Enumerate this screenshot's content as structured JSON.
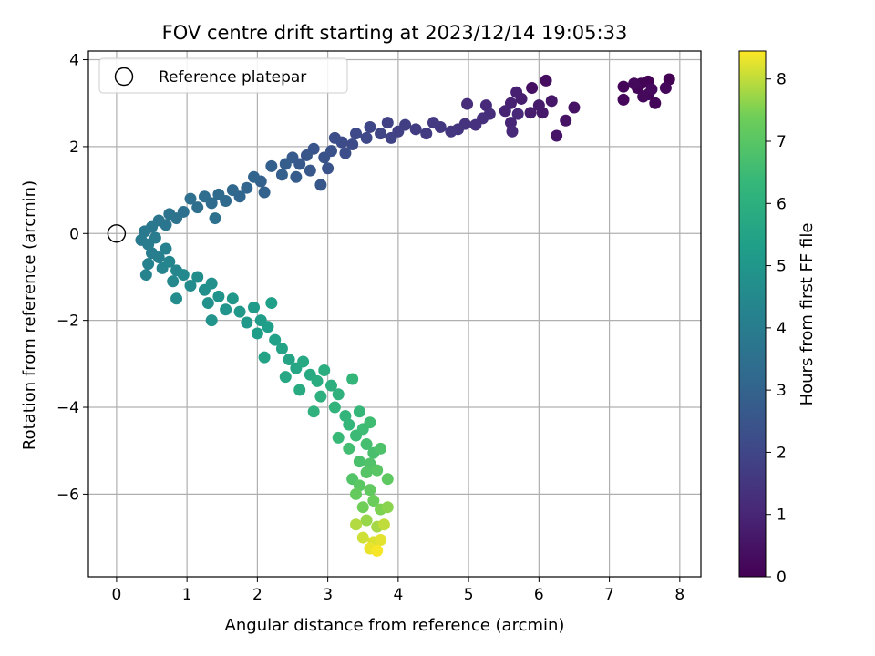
{
  "chart_data": {
    "type": "scatter",
    "title": "FOV centre drift starting at 2023/12/14 19:05:33",
    "xlabel": "Angular distance from reference (arcmin)",
    "ylabel": "Rotation from reference (arcmin)",
    "xlim": [
      -0.4,
      8.3
    ],
    "ylim": [
      -7.9,
      4.2
    ],
    "xticks": [
      "0",
      "1",
      "2",
      "3",
      "4",
      "5",
      "6",
      "7",
      "8"
    ],
    "yticks": [
      "−6",
      "−4",
      "−2",
      "0",
      "2",
      "4"
    ],
    "grid": true,
    "legend": {
      "placement": "top-left",
      "entries": [
        "Reference platepar"
      ]
    },
    "reference_point": {
      "x": 0,
      "y": 0
    },
    "colorbar": {
      "label": "Hours from first FF file",
      "colormap": "viridis",
      "range": [
        0,
        8.45
      ],
      "ticks": [
        "0",
        "1",
        "2",
        "3",
        "4",
        "5",
        "6",
        "7",
        "8"
      ]
    },
    "series": [
      {
        "color_by": "hours",
        "points": [
          {
            "x": 7.85,
            "y": 3.55,
            "h": 0.02
          },
          {
            "x": 7.55,
            "y": 3.5,
            "h": 0.05
          },
          {
            "x": 7.45,
            "y": 3.45,
            "h": 0.07
          },
          {
            "x": 7.4,
            "y": 3.35,
            "h": 0.09
          },
          {
            "x": 7.2,
            "y": 3.38,
            "h": 0.11
          },
          {
            "x": 7.55,
            "y": 3.2,
            "h": 0.13
          },
          {
            "x": 7.65,
            "y": 3.0,
            "h": 0.15
          },
          {
            "x": 7.8,
            "y": 3.35,
            "h": 0.17
          },
          {
            "x": 7.2,
            "y": 3.08,
            "h": 0.19
          },
          {
            "x": 7.48,
            "y": 3.15,
            "h": 0.21
          },
          {
            "x": 7.35,
            "y": 3.45,
            "h": 0.23
          },
          {
            "x": 7.6,
            "y": 3.32,
            "h": 0.25
          },
          {
            "x": 6.1,
            "y": 3.52,
            "h": 0.35
          },
          {
            "x": 5.9,
            "y": 3.35,
            "h": 0.4
          },
          {
            "x": 6.5,
            "y": 2.9,
            "h": 0.45
          },
          {
            "x": 6.38,
            "y": 2.6,
            "h": 0.5
          },
          {
            "x": 6.25,
            "y": 2.25,
            "h": 0.55
          },
          {
            "x": 6.18,
            "y": 3.05,
            "h": 0.6
          },
          {
            "x": 6.05,
            "y": 2.78,
            "h": 0.65
          },
          {
            "x": 6.0,
            "y": 2.95,
            "h": 0.7
          },
          {
            "x": 5.88,
            "y": 2.78,
            "h": 0.75
          },
          {
            "x": 5.75,
            "y": 3.1,
            "h": 0.8
          },
          {
            "x": 5.68,
            "y": 3.25,
            "h": 0.85
          },
          {
            "x": 5.6,
            "y": 3.0,
            "h": 0.9
          },
          {
            "x": 5.52,
            "y": 2.82,
            "h": 0.95
          },
          {
            "x": 5.6,
            "y": 2.55,
            "h": 1.0
          },
          {
            "x": 5.62,
            "y": 2.35,
            "h": 1.05
          },
          {
            "x": 5.7,
            "y": 2.75,
            "h": 1.1
          },
          {
            "x": 5.25,
            "y": 2.95,
            "h": 1.15
          },
          {
            "x": 4.98,
            "y": 2.98,
            "h": 1.2
          },
          {
            "x": 5.3,
            "y": 2.75,
            "h": 1.25
          },
          {
            "x": 5.2,
            "y": 2.65,
            "h": 1.3
          },
          {
            "x": 5.1,
            "y": 2.5,
            "h": 1.35
          },
          {
            "x": 4.95,
            "y": 2.52,
            "h": 1.4
          },
          {
            "x": 4.85,
            "y": 2.4,
            "h": 1.45
          },
          {
            "x": 4.75,
            "y": 2.35,
            "h": 1.5
          },
          {
            "x": 4.6,
            "y": 2.45,
            "h": 1.55
          },
          {
            "x": 4.5,
            "y": 2.55,
            "h": 1.6
          },
          {
            "x": 4.4,
            "y": 2.3,
            "h": 1.65
          },
          {
            "x": 4.25,
            "y": 2.4,
            "h": 1.7
          },
          {
            "x": 4.1,
            "y": 2.5,
            "h": 1.75
          },
          {
            "x": 4.0,
            "y": 2.35,
            "h": 1.8
          },
          {
            "x": 3.85,
            "y": 2.55,
            "h": 1.85
          },
          {
            "x": 3.9,
            "y": 2.2,
            "h": 1.9
          },
          {
            "x": 3.75,
            "y": 2.3,
            "h": 1.95
          },
          {
            "x": 3.6,
            "y": 2.45,
            "h": 2.0
          },
          {
            "x": 3.55,
            "y": 2.2,
            "h": 2.05
          },
          {
            "x": 3.4,
            "y": 2.3,
            "h": 2.1
          },
          {
            "x": 3.35,
            "y": 2.05,
            "h": 2.15
          },
          {
            "x": 3.2,
            "y": 2.1,
            "h": 2.2
          },
          {
            "x": 3.1,
            "y": 2.2,
            "h": 2.25
          },
          {
            "x": 3.25,
            "y": 1.85,
            "h": 2.3
          },
          {
            "x": 3.05,
            "y": 1.9,
            "h": 2.35
          },
          {
            "x": 2.95,
            "y": 1.75,
            "h": 2.4
          },
          {
            "x": 3.0,
            "y": 1.5,
            "h": 2.45
          },
          {
            "x": 2.8,
            "y": 1.95,
            "h": 2.5
          },
          {
            "x": 2.7,
            "y": 1.8,
            "h": 2.55
          },
          {
            "x": 2.75,
            "y": 1.45,
            "h": 2.6
          },
          {
            "x": 2.9,
            "y": 1.12,
            "h": 2.62
          },
          {
            "x": 2.6,
            "y": 1.6,
            "h": 2.65
          },
          {
            "x": 2.5,
            "y": 1.75,
            "h": 2.7
          },
          {
            "x": 2.55,
            "y": 1.3,
            "h": 2.75
          },
          {
            "x": 2.4,
            "y": 1.6,
            "h": 2.8
          },
          {
            "x": 2.35,
            "y": 1.35,
            "h": 2.85
          },
          {
            "x": 2.2,
            "y": 1.55,
            "h": 2.9
          },
          {
            "x": 2.05,
            "y": 1.2,
            "h": 2.95
          },
          {
            "x": 2.1,
            "y": 0.95,
            "h": 3.0
          },
          {
            "x": 1.95,
            "y": 1.3,
            "h": 3.05
          },
          {
            "x": 1.85,
            "y": 1.05,
            "h": 3.1
          },
          {
            "x": 1.75,
            "y": 0.85,
            "h": 3.15
          },
          {
            "x": 1.65,
            "y": 1.0,
            "h": 3.2
          },
          {
            "x": 1.55,
            "y": 0.75,
            "h": 3.25
          },
          {
            "x": 1.45,
            "y": 0.9,
            "h": 3.3
          },
          {
            "x": 1.35,
            "y": 0.7,
            "h": 3.35
          },
          {
            "x": 1.25,
            "y": 0.85,
            "h": 3.4
          },
          {
            "x": 1.15,
            "y": 0.6,
            "h": 3.45
          },
          {
            "x": 1.05,
            "y": 0.8,
            "h": 3.5
          },
          {
            "x": 1.4,
            "y": 0.35,
            "h": 3.52
          },
          {
            "x": 0.95,
            "y": 0.5,
            "h": 3.55
          },
          {
            "x": 0.85,
            "y": 0.35,
            "h": 3.6
          },
          {
            "x": 0.75,
            "y": 0.45,
            "h": 3.65
          },
          {
            "x": 0.7,
            "y": 0.2,
            "h": 3.7
          },
          {
            "x": 0.6,
            "y": 0.3,
            "h": 3.75
          },
          {
            "x": 0.5,
            "y": 0.15,
            "h": 3.8
          },
          {
            "x": 0.4,
            "y": 0.05,
            "h": 3.85
          },
          {
            "x": 0.35,
            "y": -0.15,
            "h": 3.9
          },
          {
            "x": 0.45,
            "y": -0.25,
            "h": 3.95
          },
          {
            "x": 0.55,
            "y": -0.1,
            "h": 4.0
          },
          {
            "x": 0.5,
            "y": -0.45,
            "h": 4.05
          },
          {
            "x": 0.6,
            "y": -0.55,
            "h": 4.1
          },
          {
            "x": 0.7,
            "y": -0.35,
            "h": 4.15
          },
          {
            "x": 0.45,
            "y": -0.7,
            "h": 4.2
          },
          {
            "x": 0.42,
            "y": -0.95,
            "h": 4.25
          },
          {
            "x": 0.65,
            "y": -0.8,
            "h": 4.3
          },
          {
            "x": 0.75,
            "y": -0.65,
            "h": 4.35
          },
          {
            "x": 0.85,
            "y": -0.85,
            "h": 4.4
          },
          {
            "x": 0.8,
            "y": -1.1,
            "h": 4.45
          },
          {
            "x": 0.95,
            "y": -0.95,
            "h": 4.5
          },
          {
            "x": 1.05,
            "y": -1.2,
            "h": 4.55
          },
          {
            "x": 0.85,
            "y": -1.5,
            "h": 4.6
          },
          {
            "x": 1.15,
            "y": -1.0,
            "h": 4.65
          },
          {
            "x": 1.25,
            "y": -1.3,
            "h": 4.7
          },
          {
            "x": 1.35,
            "y": -1.15,
            "h": 4.75
          },
          {
            "x": 1.3,
            "y": -1.6,
            "h": 4.8
          },
          {
            "x": 1.45,
            "y": -1.45,
            "h": 4.85
          },
          {
            "x": 1.35,
            "y": -2.0,
            "h": 4.9
          },
          {
            "x": 1.55,
            "y": -1.75,
            "h": 4.95
          },
          {
            "x": 1.65,
            "y": -1.5,
            "h": 5.0
          },
          {
            "x": 1.75,
            "y": -1.8,
            "h": 5.05
          },
          {
            "x": 1.85,
            "y": -2.05,
            "h": 5.1
          },
          {
            "x": 1.95,
            "y": -1.7,
            "h": 5.15
          },
          {
            "x": 2.05,
            "y": -2.0,
            "h": 5.2
          },
          {
            "x": 2.0,
            "y": -2.3,
            "h": 5.25
          },
          {
            "x": 2.15,
            "y": -2.15,
            "h": 5.3
          },
          {
            "x": 2.2,
            "y": -1.6,
            "h": 5.35
          },
          {
            "x": 2.25,
            "y": -2.45,
            "h": 5.4
          },
          {
            "x": 2.1,
            "y": -2.85,
            "h": 5.45
          },
          {
            "x": 2.35,
            "y": -2.65,
            "h": 5.5
          },
          {
            "x": 2.45,
            "y": -2.9,
            "h": 5.55
          },
          {
            "x": 2.55,
            "y": -3.1,
            "h": 5.6
          },
          {
            "x": 2.4,
            "y": -3.3,
            "h": 5.65
          },
          {
            "x": 2.65,
            "y": -2.95,
            "h": 5.7
          },
          {
            "x": 2.75,
            "y": -3.25,
            "h": 5.75
          },
          {
            "x": 2.6,
            "y": -3.6,
            "h": 5.8
          },
          {
            "x": 2.85,
            "y": -3.4,
            "h": 5.85
          },
          {
            "x": 2.95,
            "y": -3.15,
            "h": 5.9
          },
          {
            "x": 3.05,
            "y": -3.5,
            "h": 5.95
          },
          {
            "x": 2.9,
            "y": -3.75,
            "h": 6.0
          },
          {
            "x": 3.15,
            "y": -3.7,
            "h": 6.05
          },
          {
            "x": 2.8,
            "y": -4.1,
            "h": 6.1
          },
          {
            "x": 3.1,
            "y": -4.0,
            "h": 6.15
          },
          {
            "x": 3.25,
            "y": -4.2,
            "h": 6.2
          },
          {
            "x": 3.35,
            "y": -3.35,
            "h": 6.25
          },
          {
            "x": 3.3,
            "y": -4.4,
            "h": 6.3
          },
          {
            "x": 3.45,
            "y": -4.1,
            "h": 6.35
          },
          {
            "x": 3.15,
            "y": -4.7,
            "h": 6.4
          },
          {
            "x": 3.4,
            "y": -4.65,
            "h": 6.45
          },
          {
            "x": 3.5,
            "y": -4.5,
            "h": 6.5
          },
          {
            "x": 3.6,
            "y": -4.35,
            "h": 6.55
          },
          {
            "x": 3.3,
            "y": -4.95,
            "h": 6.6
          },
          {
            "x": 3.55,
            "y": -4.85,
            "h": 6.65
          },
          {
            "x": 3.65,
            "y": -5.05,
            "h": 6.7
          },
          {
            "x": 3.45,
            "y": -5.25,
            "h": 6.75
          },
          {
            "x": 3.75,
            "y": -4.95,
            "h": 6.8
          },
          {
            "x": 3.6,
            "y": -5.3,
            "h": 6.85
          },
          {
            "x": 3.35,
            "y": -5.65,
            "h": 6.9
          },
          {
            "x": 3.55,
            "y": -5.5,
            "h": 6.95
          },
          {
            "x": 3.7,
            "y": -5.45,
            "h": 7.0
          },
          {
            "x": 3.45,
            "y": -5.8,
            "h": 7.05
          },
          {
            "x": 3.85,
            "y": -5.65,
            "h": 7.1
          },
          {
            "x": 3.6,
            "y": -5.9,
            "h": 7.15
          },
          {
            "x": 3.4,
            "y": -6.0,
            "h": 7.2
          },
          {
            "x": 3.65,
            "y": -6.15,
            "h": 7.3
          },
          {
            "x": 3.5,
            "y": -6.3,
            "h": 7.4
          },
          {
            "x": 3.75,
            "y": -6.35,
            "h": 7.5
          },
          {
            "x": 3.85,
            "y": -6.3,
            "h": 7.6
          },
          {
            "x": 3.55,
            "y": -6.6,
            "h": 7.7
          },
          {
            "x": 3.7,
            "y": -6.75,
            "h": 7.8
          },
          {
            "x": 3.4,
            "y": -6.7,
            "h": 7.9
          },
          {
            "x": 3.8,
            "y": -6.7,
            "h": 8.0
          },
          {
            "x": 3.5,
            "y": -7.0,
            "h": 8.1
          },
          {
            "x": 3.65,
            "y": -7.1,
            "h": 8.2
          },
          {
            "x": 3.75,
            "y": -7.05,
            "h": 8.25
          },
          {
            "x": 3.6,
            "y": -7.25,
            "h": 8.3
          },
          {
            "x": 3.7,
            "y": -7.3,
            "h": 8.4
          }
        ]
      }
    ]
  }
}
